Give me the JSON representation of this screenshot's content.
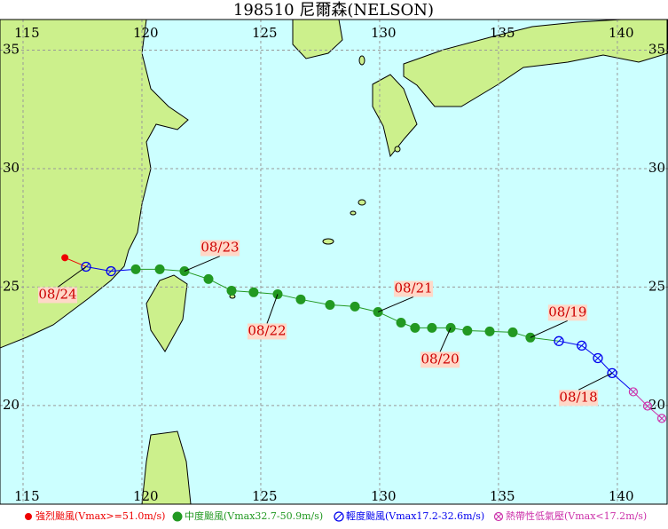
{
  "title": "198510 尼爾森(NELSON)",
  "map": {
    "xlim": [
      114.03,
      142.13
    ],
    "ylim": [
      15.84,
      36.29
    ],
    "xticks": [
      115,
      120,
      125,
      130,
      135,
      140
    ],
    "yticks": [
      20,
      25,
      30,
      35
    ]
  },
  "legend": [
    {
      "label": "強烈颱風(Vmax>=51.0m/s)",
      "color": "#ee0000"
    },
    {
      "label": "中度颱風(Vmax32.7-50.9m/s)",
      "color": "#229922"
    },
    {
      "label": "輕度颱風(Vmax17.2-32.6m/s)",
      "color": "#0000ee"
    },
    {
      "label": "熱帶性低氣壓(Vmax<17.2m/s)",
      "color": "#cc33aa"
    }
  ],
  "track": {
    "points": [
      {
        "lon": 141.87,
        "lat": 19.46,
        "cat": 3
      },
      {
        "lon": 141.27,
        "lat": 19.98,
        "cat": 3
      },
      {
        "lon": 140.67,
        "lat": 20.58,
        "cat": 3
      },
      {
        "lon": 139.78,
        "lat": 21.37,
        "cat": 2
      },
      {
        "lon": 139.18,
        "lat": 22.0,
        "cat": 2
      },
      {
        "lon": 138.5,
        "lat": 22.53,
        "cat": 2
      },
      {
        "lon": 137.54,
        "lat": 22.72,
        "cat": 2
      },
      {
        "lon": 136.34,
        "lat": 22.87,
        "cat": 1
      },
      {
        "lon": 135.6,
        "lat": 23.09,
        "cat": 1
      },
      {
        "lon": 134.63,
        "lat": 23.13,
        "cat": 1
      },
      {
        "lon": 133.69,
        "lat": 23.16,
        "cat": 1
      },
      {
        "lon": 132.99,
        "lat": 23.28,
        "cat": 1
      },
      {
        "lon": 132.2,
        "lat": 23.28,
        "cat": 1
      },
      {
        "lon": 131.49,
        "lat": 23.28,
        "cat": 1
      },
      {
        "lon": 130.9,
        "lat": 23.5,
        "cat": 1
      },
      {
        "lon": 129.93,
        "lat": 23.95,
        "cat": 1
      },
      {
        "lon": 128.96,
        "lat": 24.18,
        "cat": 1
      },
      {
        "lon": 127.91,
        "lat": 24.25,
        "cat": 1
      },
      {
        "lon": 126.68,
        "lat": 24.48,
        "cat": 1
      },
      {
        "lon": 125.71,
        "lat": 24.7,
        "cat": 1
      },
      {
        "lon": 124.7,
        "lat": 24.78,
        "cat": 1
      },
      {
        "lon": 123.77,
        "lat": 24.85,
        "cat": 1
      },
      {
        "lon": 122.8,
        "lat": 25.34,
        "cat": 1
      },
      {
        "lon": 121.79,
        "lat": 25.67,
        "cat": 1
      },
      {
        "lon": 120.75,
        "lat": 25.75,
        "cat": 1
      },
      {
        "lon": 119.74,
        "lat": 25.75,
        "cat": 1
      },
      {
        "lon": 118.7,
        "lat": 25.67,
        "cat": 2
      },
      {
        "lon": 117.65,
        "lat": 25.86,
        "cat": 2
      },
      {
        "lon": 116.76,
        "lat": 26.24,
        "cat": 0
      }
    ],
    "date_labels": [
      {
        "text": "08/18",
        "point": 3
      },
      {
        "text": "08/19",
        "point": 7
      },
      {
        "text": "08/20",
        "point": 11
      },
      {
        "text": "08/21",
        "point": 15
      },
      {
        "text": "08/22",
        "point": 19
      },
      {
        "text": "08/23",
        "point": 23
      },
      {
        "text": "08/24",
        "point": 27
      }
    ]
  }
}
